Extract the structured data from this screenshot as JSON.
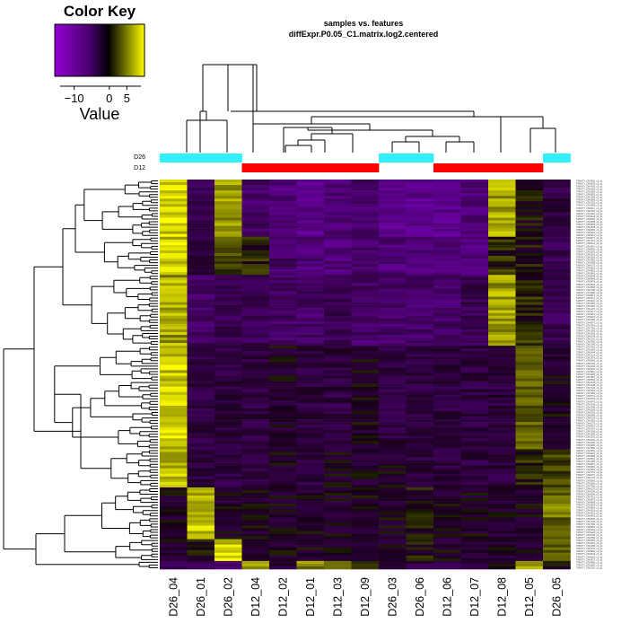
{
  "chart_data": {
    "type": "heatmap",
    "title": "samples vs. features",
    "subtitle": "diffExpr.P0.05_C1.matrix.log2.centered",
    "color_key": {
      "title": "Color Key",
      "xlabel": "Value",
      "ticks": [
        "−10",
        "0",
        "5"
      ],
      "tick_values": [
        -10,
        0,
        5
      ],
      "range": [
        -14,
        9
      ],
      "colors": {
        "low": "#a000ff",
        "mid": "#000000",
        "high": "#ffff00"
      }
    },
    "side_colors": {
      "groups": [
        {
          "label": "D26",
          "color": "#33f0ff"
        },
        {
          "label": "D12",
          "color": "#ff0000"
        }
      ],
      "sample_group": [
        "D26",
        "D26",
        "D26",
        "D12",
        "D12",
        "D12",
        "D12",
        "D12",
        "D26",
        "D26",
        "D12",
        "D12",
        "D12",
        "D12",
        "D26"
      ]
    },
    "columns": [
      "D26_04",
      "D26_01",
      "D26_02",
      "D12_04",
      "D12_02",
      "D12_01",
      "D12_03",
      "D12_09",
      "D26_03",
      "D26_06",
      "D12_06",
      "D12_07",
      "D12_08",
      "D12_05",
      "D26_05"
    ],
    "n_rows": 143,
    "row_label_prefix": "TRINITY_DN",
    "blocks": [
      {
        "rows": [
          0,
          20
        ],
        "means": [
          8,
          -3,
          6,
          -4,
          -5,
          -6,
          -5,
          -4,
          -6,
          -6,
          -6,
          -5,
          6,
          0,
          -2
        ]
      },
      {
        "rows": [
          21,
          34
        ],
        "means": [
          8,
          -2,
          2,
          1,
          -4,
          -5,
          -5,
          -4,
          -5,
          -5,
          -5,
          -5,
          1,
          0,
          -3
        ]
      },
      {
        "rows": [
          35,
          60
        ],
        "means": [
          6,
          -4,
          -3,
          -3,
          -4,
          -4,
          -3,
          -4,
          -4,
          -4,
          -4,
          -3,
          6,
          1,
          -3
        ]
      },
      {
        "rows": [
          61,
          98
        ],
        "means": [
          8,
          -2,
          -2,
          -2,
          -1,
          -2,
          -2,
          -1,
          -2,
          -2,
          -2,
          -2,
          -2,
          3,
          -1
        ]
      },
      {
        "rows": [
          99,
          112
        ],
        "means": [
          7,
          -2,
          -2,
          -2,
          -1,
          -2,
          -1,
          -1,
          -1,
          -2,
          -2,
          -2,
          -2,
          1,
          2
        ]
      },
      {
        "rows": [
          113,
          131
        ],
        "means": [
          -1,
          7,
          -1,
          -1,
          -1,
          -1,
          -1,
          -1,
          -1,
          0,
          -1,
          -1,
          -1,
          -1,
          4
        ]
      },
      {
        "rows": [
          132,
          139
        ],
        "means": [
          -1,
          0,
          8,
          -1,
          -1,
          -1,
          -1,
          -1,
          -1,
          0,
          -1,
          -1,
          -1,
          -1,
          3
        ]
      },
      {
        "rows": [
          140,
          142
        ],
        "means": [
          -3,
          -4,
          -4,
          6,
          -2,
          4,
          3,
          0,
          -2,
          -2,
          -2,
          -2,
          0,
          5,
          -1
        ]
      }
    ]
  }
}
